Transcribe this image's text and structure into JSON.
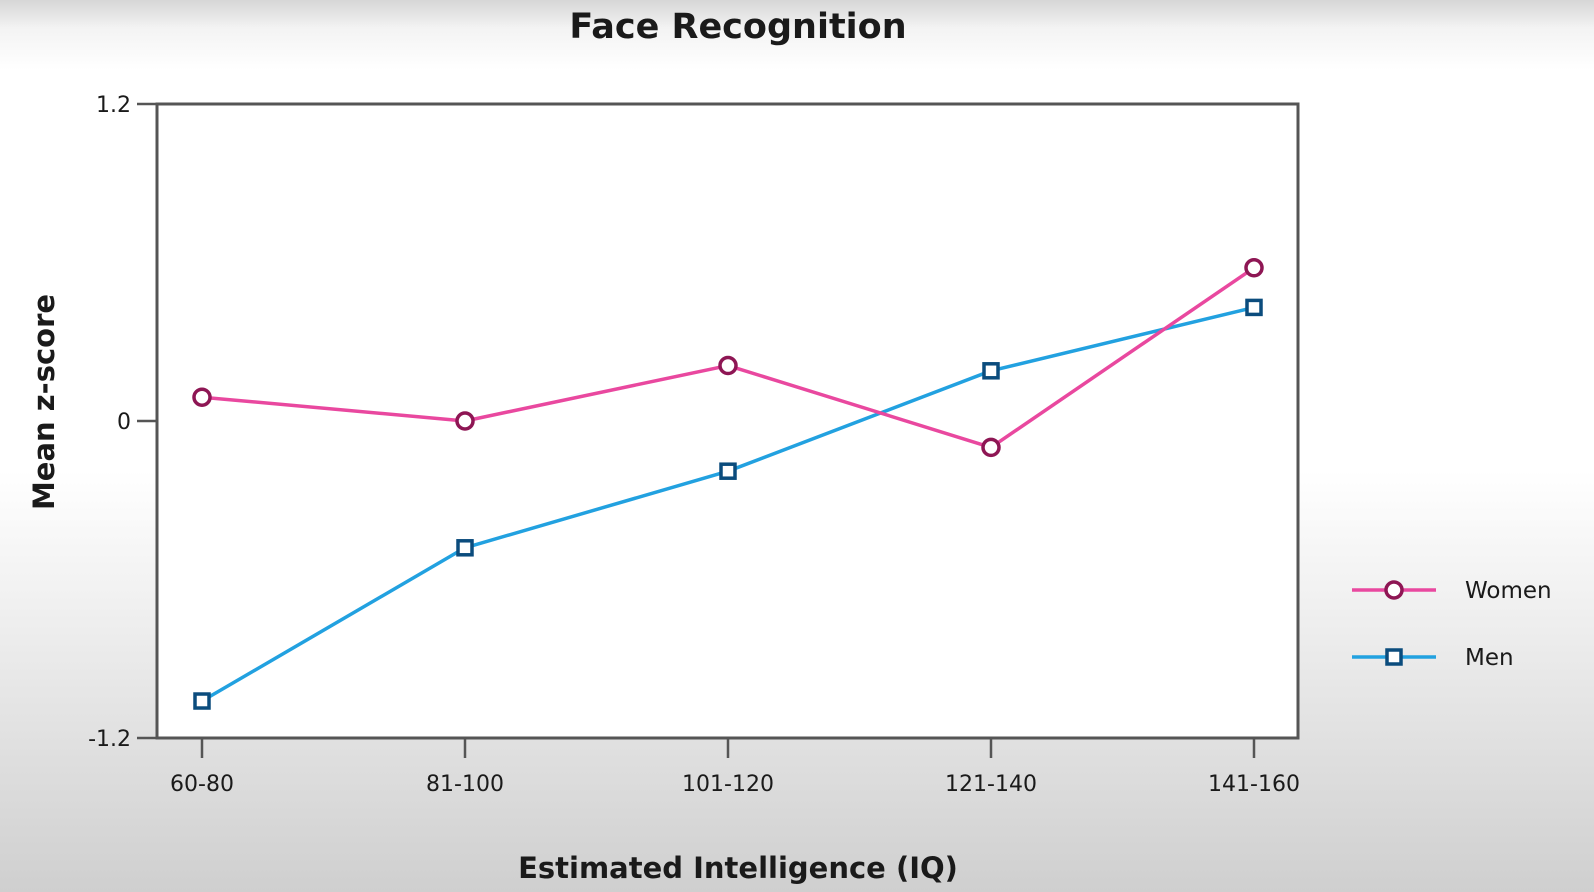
{
  "chart_data": {
    "type": "line",
    "title": "Face Recognition",
    "xlabel": "Estimated Intelligence (IQ)",
    "ylabel": "Mean z-score",
    "categories": [
      "60-80",
      "81-100",
      "101-120",
      "121-140",
      "141-160"
    ],
    "ylim": [
      -1.2,
      1.2
    ],
    "yticks": [
      {
        "value": 1.2,
        "label": "1.2"
      },
      {
        "value": 0,
        "label": "0"
      },
      {
        "value": -1.2,
        "label": "-1.2"
      }
    ],
    "grid": false,
    "legend_position": "right",
    "series": [
      {
        "name": "Women",
        "marker": "circle",
        "line_color": "#e9489f",
        "marker_color": "#8e1654",
        "values": [
          0.09,
          0.0,
          0.21,
          -0.1,
          0.58
        ]
      },
      {
        "name": "Men",
        "marker": "square",
        "line_color": "#22a1e0",
        "marker_color": "#0b4c7d",
        "values": [
          -1.06,
          -0.48,
          -0.19,
          0.19,
          0.43
        ]
      }
    ]
  }
}
